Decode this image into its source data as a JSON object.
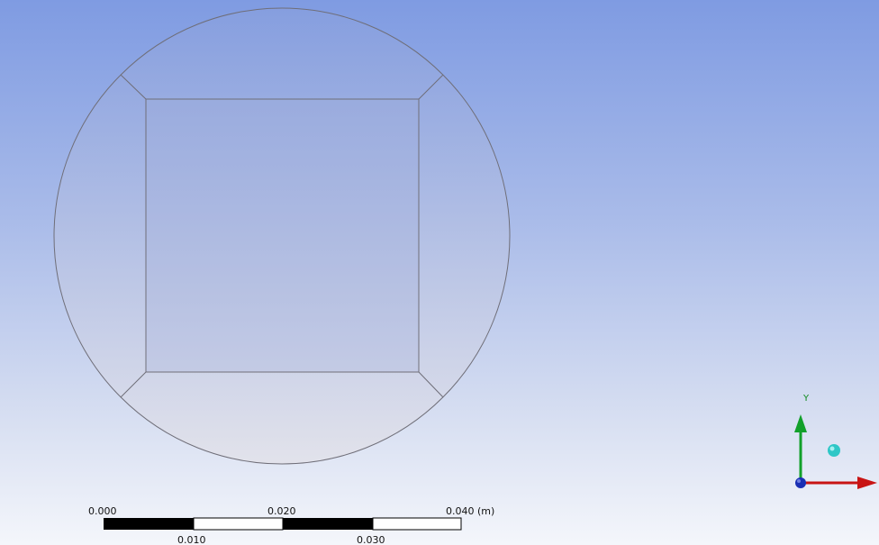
{
  "scale_bar": {
    "label_0": "0.000",
    "label_1": "0.010",
    "label_2": "0.020",
    "label_3": "0.030",
    "label_4": "0.040 (m)"
  },
  "triad": {
    "y_label": "Y",
    "x_axis_color": "#c81414",
    "y_axis_color": "#12a02a",
    "z_axis_color": "#1a2fb4",
    "iso_ball_color": "#2ec7c7"
  },
  "colors": {
    "background_top": "#7f9be2",
    "background_bottom": "#f4f6fb",
    "edge_color": "#6f6e78"
  }
}
